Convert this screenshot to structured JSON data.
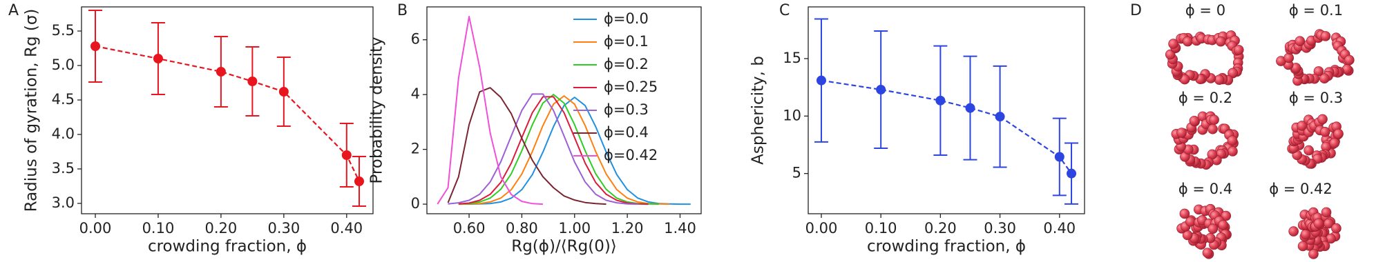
{
  "chart_data": [
    {
      "type": "errorbar",
      "panel": "A",
      "xlabel": "crowding fraction, ϕ",
      "ylabel": "Radius of gyration, Rg (σ)",
      "x": [
        0,
        0.1,
        0.2,
        0.25,
        0.3,
        0.4,
        0.42
      ],
      "series": [
        {
          "color": "#e8141e",
          "values": [
            5.28,
            5.1,
            4.91,
            4.77,
            4.62,
            3.7,
            3.32
          ],
          "errors": [
            0.52,
            0.52,
            0.51,
            0.5,
            0.5,
            0.46,
            0.36
          ]
        }
      ],
      "xlim": [
        -0.022,
        0.442
      ],
      "ylim": [
        2.85,
        5.85
      ],
      "xticks": [
        {
          "value": 0,
          "label": "0.00"
        },
        {
          "value": 0.1,
          "label": "0.10"
        },
        {
          "value": 0.2,
          "label": "0.20"
        },
        {
          "value": 0.3,
          "label": "0.30"
        },
        {
          "value": 0.4,
          "label": "0.40"
        }
      ],
      "yticks": [
        {
          "value": 3,
          "label": "3.0"
        },
        3.5,
        {
          "value": 4,
          "label": "4.0"
        },
        4.5,
        {
          "value": 5,
          "label": "5.0"
        },
        5.5
      ],
      "linestyle": "dashed"
    },
    {
      "type": "line",
      "panel": "B",
      "xlabel": "Rg(ϕ)/⟨Rg(0)⟩",
      "ylabel": "Probability density",
      "x": [
        0.48,
        0.52,
        0.56,
        0.6,
        0.64,
        0.68,
        0.72,
        0.76,
        0.8,
        0.84,
        0.88,
        0.92,
        0.96,
        1.0,
        1.04,
        1.08,
        1.12,
        1.16,
        1.2,
        1.24,
        1.28,
        1.32,
        1.36,
        1.4,
        1.44
      ],
      "series": [
        {
          "name": "ϕ=0.0",
          "color": "#1f8fe0",
          "values": [
            null,
            null,
            0,
            0,
            0.01,
            0.02,
            0.08,
            0.22,
            0.53,
            1.08,
            1.9,
            2.83,
            3.6,
            3.9,
            3.6,
            2.83,
            1.9,
            1.08,
            0.53,
            0.22,
            0.08,
            0.02,
            0.01,
            0,
            0
          ]
        },
        {
          "name": "ϕ=0.1",
          "color": "#ff7f0e",
          "values": [
            null,
            null,
            0,
            0.01,
            0.02,
            0.08,
            0.22,
            0.53,
            1.1,
            1.92,
            2.87,
            3.65,
            3.95,
            3.65,
            2.87,
            1.92,
            1.1,
            0.53,
            0.22,
            0.08,
            0.02,
            0.01,
            0,
            null,
            null
          ]
        },
        {
          "name": "ϕ=0.2",
          "color": "#2fcc22",
          "values": [
            null,
            null,
            0.01,
            0.02,
            0.08,
            0.22,
            0.54,
            1.11,
            1.95,
            2.9,
            3.69,
            4.0,
            3.69,
            2.9,
            1.95,
            1.11,
            0.54,
            0.22,
            0.08,
            0.02,
            0.01,
            0,
            null,
            null,
            null
          ]
        },
        {
          "name": "ϕ=0.25",
          "color": "#dc1a3a",
          "values": [
            null,
            null,
            0.01,
            0.04,
            0.14,
            0.36,
            0.79,
            1.5,
            2.43,
            3.34,
            3.92,
            3.92,
            3.34,
            2.43,
            1.5,
            0.79,
            0.36,
            0.14,
            0.04,
            0.01,
            0,
            null,
            null,
            null,
            null
          ]
        },
        {
          "name": "ϕ=0.3",
          "color": "#9b5fd6",
          "values": [
            null,
            0.01,
            0.05,
            0.14,
            0.36,
            0.81,
            1.54,
            2.49,
            3.42,
            4.02,
            4.02,
            3.42,
            2.49,
            1.54,
            0.81,
            0.36,
            0.14,
            0.05,
            0.01,
            0,
            null,
            null,
            null,
            null,
            null
          ]
        },
        {
          "name": "ϕ=0.4",
          "color": "#7a2430",
          "values": [
            null,
            0.05,
            1.0,
            2.9,
            4.1,
            4.25,
            3.9,
            3.3,
            2.4,
            1.6,
            1.0,
            0.6,
            0.3,
            0.15,
            0.06,
            0.02,
            0,
            null,
            null,
            null,
            null,
            null,
            null,
            null,
            null
          ]
        },
        {
          "name": "ϕ=0.42",
          "color": "#f050d8",
          "values": [
            0,
            0.6,
            4.6,
            6.85,
            5.0,
            2.6,
            1.0,
            0.35,
            0.1,
            0.02,
            0,
            null,
            null,
            null,
            null,
            null,
            null,
            null,
            null,
            null,
            null,
            null,
            null,
            null,
            null
          ]
        }
      ],
      "xlim": [
        0.44,
        1.48
      ],
      "ylim": [
        -0.35,
        7.2
      ],
      "xticks": [
        {
          "value": 0.6,
          "label": "0.60"
        },
        {
          "value": 0.8,
          "label": "0.80"
        },
        {
          "value": 1,
          "label": "1.00"
        },
        {
          "value": 1.2,
          "label": "1.20"
        },
        {
          "value": 1.4,
          "label": "1.40"
        }
      ],
      "yticks": [
        0,
        2,
        4,
        6
      ],
      "legend": "upper right"
    },
    {
      "type": "errorbar",
      "panel": "C",
      "xlabel": "crowding fraction, ϕ",
      "ylabel": "Asphericity, b",
      "x": [
        0,
        0.1,
        0.2,
        0.25,
        0.3,
        0.4,
        0.42
      ],
      "series": [
        {
          "color": "#2c44e0",
          "values": [
            13.1,
            12.3,
            11.35,
            10.7,
            9.95,
            6.45,
            5.0
          ],
          "errors": [
            5.35,
            5.1,
            4.75,
            4.5,
            4.4,
            3.35,
            2.65
          ]
        }
      ],
      "xlim": [
        -0.022,
        0.442
      ],
      "ylim": [
        1.5,
        19.5
      ],
      "xticks": [
        {
          "value": 0,
          "label": "0.00"
        },
        {
          "value": 0.1,
          "label": "0.10"
        },
        {
          "value": 0.2,
          "label": "0.20"
        },
        {
          "value": 0.3,
          "label": "0.30"
        },
        {
          "value": 0.4,
          "label": "0.40"
        }
      ],
      "yticks": [
        5,
        10,
        15
      ],
      "linestyle": "dashed"
    }
  ],
  "snapshots": {
    "panel": "D",
    "labels": [
      "ϕ = 0",
      "ϕ = 0.1",
      "ϕ = 0.2",
      "ϕ = 0.3",
      "ϕ = 0.4",
      "ϕ = 0.42"
    ]
  }
}
